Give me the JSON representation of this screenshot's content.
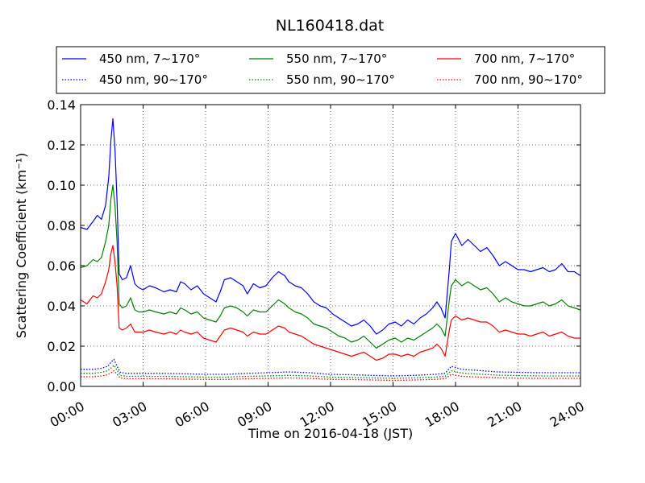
{
  "chart_data": {
    "type": "line",
    "title": "NL160418.dat",
    "xlabel": "Time on 2016-04-18 (JST)",
    "ylabel": "Scattering Coefficient (km⁻¹)",
    "xlim": [
      0,
      24
    ],
    "ylim": [
      0,
      0.14
    ],
    "xticks": [
      0,
      3,
      6,
      9,
      12,
      15,
      18,
      21,
      24
    ],
    "xtick_labels": [
      "00:00",
      "03:00",
      "06:00",
      "09:00",
      "12:00",
      "15:00",
      "18:00",
      "21:00",
      "24:00"
    ],
    "yticks": [
      0,
      0.02,
      0.04,
      0.06,
      0.08,
      0.1,
      0.12,
      0.14
    ],
    "ytick_labels": [
      "0.00",
      "0.02",
      "0.04",
      "0.06",
      "0.08",
      "0.10",
      "0.12",
      "0.14"
    ],
    "grid": true,
    "legend_position": "top-outside",
    "legend_columns": 3,
    "series": [
      {
        "name": "450 nm, 7∼170°",
        "color": "#0000ff",
        "style": "solid",
        "x": [
          0,
          0.3,
          0.6,
          0.8,
          1.0,
          1.2,
          1.35,
          1.45,
          1.55,
          1.65,
          1.75,
          1.85,
          2.0,
          2.2,
          2.4,
          2.6,
          2.8,
          3.0,
          3.3,
          3.6,
          4.0,
          4.3,
          4.6,
          4.8,
          5.0,
          5.3,
          5.6,
          5.9,
          6.2,
          6.5,
          6.7,
          6.9,
          7.2,
          7.5,
          7.8,
          8.0,
          8.3,
          8.6,
          8.9,
          9.2,
          9.5,
          9.8,
          10.0,
          10.3,
          10.6,
          10.9,
          11.2,
          11.5,
          11.8,
          12.1,
          12.4,
          12.7,
          13.0,
          13.3,
          13.6,
          13.9,
          14.2,
          14.5,
          14.8,
          15.1,
          15.4,
          15.7,
          16.0,
          16.3,
          16.6,
          16.9,
          17.1,
          17.3,
          17.5,
          17.7,
          17.8,
          18.0,
          18.3,
          18.6,
          18.9,
          19.2,
          19.5,
          19.8,
          20.1,
          20.4,
          20.7,
          21.0,
          21.3,
          21.6,
          21.9,
          22.2,
          22.5,
          22.8,
          23.1,
          23.4,
          23.7,
          24.0
        ],
        "values": [
          0.079,
          0.078,
          0.082,
          0.085,
          0.083,
          0.09,
          0.104,
          0.122,
          0.133,
          0.118,
          0.092,
          0.056,
          0.053,
          0.054,
          0.06,
          0.051,
          0.049,
          0.048,
          0.05,
          0.049,
          0.047,
          0.048,
          0.047,
          0.052,
          0.051,
          0.048,
          0.05,
          0.046,
          0.044,
          0.042,
          0.047,
          0.053,
          0.054,
          0.052,
          0.05,
          0.046,
          0.051,
          0.049,
          0.05,
          0.054,
          0.057,
          0.055,
          0.052,
          0.05,
          0.049,
          0.046,
          0.042,
          0.04,
          0.039,
          0.036,
          0.034,
          0.032,
          0.03,
          0.031,
          0.033,
          0.03,
          0.026,
          0.028,
          0.031,
          0.032,
          0.03,
          0.033,
          0.031,
          0.034,
          0.036,
          0.039,
          0.042,
          0.039,
          0.034,
          0.058,
          0.072,
          0.076,
          0.07,
          0.073,
          0.07,
          0.067,
          0.069,
          0.065,
          0.06,
          0.062,
          0.06,
          0.058,
          0.058,
          0.057,
          0.058,
          0.059,
          0.057,
          0.058,
          0.061,
          0.057,
          0.057,
          0.055
        ]
      },
      {
        "name": "550 nm, 7∼170°",
        "color": "#008000",
        "style": "solid",
        "x": [
          0,
          0.3,
          0.6,
          0.8,
          1.0,
          1.2,
          1.35,
          1.45,
          1.55,
          1.65,
          1.75,
          1.85,
          2.0,
          2.2,
          2.4,
          2.6,
          2.8,
          3.0,
          3.3,
          3.6,
          4.0,
          4.3,
          4.6,
          4.8,
          5.0,
          5.3,
          5.6,
          5.9,
          6.2,
          6.5,
          6.7,
          6.9,
          7.2,
          7.5,
          7.8,
          8.0,
          8.3,
          8.6,
          8.9,
          9.2,
          9.5,
          9.8,
          10.0,
          10.3,
          10.6,
          10.9,
          11.2,
          11.5,
          11.8,
          12.1,
          12.4,
          12.7,
          13.0,
          13.3,
          13.6,
          13.9,
          14.2,
          14.5,
          14.8,
          15.1,
          15.4,
          15.7,
          16.0,
          16.3,
          16.6,
          16.9,
          17.1,
          17.3,
          17.5,
          17.7,
          17.8,
          18.0,
          18.3,
          18.6,
          18.9,
          19.2,
          19.5,
          19.8,
          20.1,
          20.4,
          20.7,
          21.0,
          21.3,
          21.6,
          21.9,
          22.2,
          22.5,
          22.8,
          23.1,
          23.4,
          23.7,
          24.0
        ],
        "values": [
          0.059,
          0.06,
          0.063,
          0.062,
          0.064,
          0.072,
          0.08,
          0.093,
          0.1,
          0.09,
          0.072,
          0.041,
          0.039,
          0.04,
          0.044,
          0.038,
          0.037,
          0.037,
          0.038,
          0.037,
          0.036,
          0.037,
          0.036,
          0.039,
          0.038,
          0.036,
          0.037,
          0.034,
          0.033,
          0.032,
          0.035,
          0.039,
          0.04,
          0.039,
          0.037,
          0.035,
          0.038,
          0.037,
          0.037,
          0.04,
          0.043,
          0.041,
          0.039,
          0.037,
          0.036,
          0.034,
          0.031,
          0.03,
          0.029,
          0.027,
          0.025,
          0.024,
          0.022,
          0.023,
          0.025,
          0.022,
          0.019,
          0.021,
          0.023,
          0.024,
          0.022,
          0.024,
          0.023,
          0.025,
          0.027,
          0.029,
          0.031,
          0.029,
          0.025,
          0.043,
          0.05,
          0.053,
          0.05,
          0.052,
          0.05,
          0.048,
          0.049,
          0.046,
          0.042,
          0.044,
          0.042,
          0.041,
          0.04,
          0.04,
          0.041,
          0.042,
          0.04,
          0.041,
          0.043,
          0.04,
          0.039,
          0.038
        ]
      },
      {
        "name": "700 nm, 7∼170°",
        "color": "#ff0000",
        "style": "solid",
        "x": [
          0,
          0.3,
          0.6,
          0.8,
          1.0,
          1.2,
          1.35,
          1.45,
          1.55,
          1.65,
          1.75,
          1.85,
          2.0,
          2.2,
          2.4,
          2.6,
          2.8,
          3.0,
          3.3,
          3.6,
          4.0,
          4.3,
          4.6,
          4.8,
          5.0,
          5.3,
          5.6,
          5.9,
          6.2,
          6.5,
          6.7,
          6.9,
          7.2,
          7.5,
          7.8,
          8.0,
          8.3,
          8.6,
          8.9,
          9.2,
          9.5,
          9.8,
          10.0,
          10.3,
          10.6,
          10.9,
          11.2,
          11.5,
          11.8,
          12.1,
          12.4,
          12.7,
          13.0,
          13.3,
          13.6,
          13.9,
          14.2,
          14.5,
          14.8,
          15.1,
          15.4,
          15.7,
          16.0,
          16.3,
          16.6,
          16.9,
          17.1,
          17.3,
          17.5,
          17.7,
          17.8,
          18.0,
          18.3,
          18.6,
          18.9,
          19.2,
          19.5,
          19.8,
          20.1,
          20.4,
          20.7,
          21.0,
          21.3,
          21.6,
          21.9,
          22.2,
          22.5,
          22.8,
          23.1,
          23.4,
          23.7,
          24.0
        ],
        "values": [
          0.043,
          0.041,
          0.045,
          0.044,
          0.046,
          0.052,
          0.058,
          0.066,
          0.07,
          0.062,
          0.05,
          0.029,
          0.028,
          0.029,
          0.031,
          0.027,
          0.027,
          0.027,
          0.028,
          0.027,
          0.026,
          0.027,
          0.026,
          0.028,
          0.027,
          0.026,
          0.027,
          0.024,
          0.023,
          0.022,
          0.025,
          0.028,
          0.029,
          0.028,
          0.027,
          0.025,
          0.027,
          0.026,
          0.026,
          0.028,
          0.03,
          0.029,
          0.027,
          0.026,
          0.025,
          0.023,
          0.021,
          0.02,
          0.019,
          0.018,
          0.017,
          0.016,
          0.015,
          0.016,
          0.017,
          0.015,
          0.013,
          0.014,
          0.016,
          0.016,
          0.015,
          0.016,
          0.015,
          0.017,
          0.018,
          0.019,
          0.021,
          0.019,
          0.015,
          0.028,
          0.033,
          0.035,
          0.033,
          0.034,
          0.033,
          0.032,
          0.032,
          0.03,
          0.027,
          0.028,
          0.027,
          0.026,
          0.026,
          0.025,
          0.026,
          0.027,
          0.025,
          0.026,
          0.027,
          0.025,
          0.024,
          0.024
        ]
      },
      {
        "name": "450 nm, 90∼170°",
        "color": "#0000ff",
        "style": "dotted",
        "x": [
          0,
          0.6,
          1.0,
          1.3,
          1.5,
          1.6,
          1.75,
          1.9,
          2.2,
          3.0,
          4.0,
          5.0,
          6.0,
          7.0,
          8.0,
          9.0,
          10.0,
          11.0,
          12.0,
          13.0,
          14.0,
          15.0,
          16.0,
          17.0,
          17.5,
          17.8,
          18.3,
          19.0,
          20.0,
          21.0,
          22.0,
          23.0,
          24.0
        ],
        "values": [
          0.0085,
          0.0085,
          0.009,
          0.01,
          0.0125,
          0.0135,
          0.01,
          0.007,
          0.0065,
          0.0065,
          0.0065,
          0.0063,
          0.006,
          0.006,
          0.0065,
          0.0068,
          0.0072,
          0.0068,
          0.006,
          0.0058,
          0.0055,
          0.0052,
          0.0055,
          0.006,
          0.0065,
          0.01,
          0.0085,
          0.008,
          0.0072,
          0.007,
          0.0068,
          0.0068,
          0.0068
        ]
      },
      {
        "name": "550 nm, 90∼170°",
        "color": "#008000",
        "style": "dotted",
        "x": [
          0,
          0.6,
          1.0,
          1.3,
          1.5,
          1.6,
          1.75,
          1.9,
          2.2,
          3.0,
          4.0,
          5.0,
          6.0,
          7.0,
          8.0,
          9.0,
          10.0,
          11.0,
          12.0,
          13.0,
          14.0,
          15.0,
          16.0,
          17.0,
          17.5,
          17.8,
          18.3,
          19.0,
          20.0,
          21.0,
          22.0,
          23.0,
          24.0
        ],
        "values": [
          0.0065,
          0.0065,
          0.007,
          0.0078,
          0.0095,
          0.0105,
          0.008,
          0.0055,
          0.005,
          0.005,
          0.005,
          0.0048,
          0.0046,
          0.0046,
          0.005,
          0.0052,
          0.0055,
          0.0052,
          0.0046,
          0.0044,
          0.0042,
          0.004,
          0.0042,
          0.0046,
          0.005,
          0.0078,
          0.0066,
          0.0062,
          0.0056,
          0.0054,
          0.0052,
          0.0052,
          0.0052
        ]
      },
      {
        "name": "700 nm, 90∼170°",
        "color": "#ff0000",
        "style": "dotted",
        "x": [
          0,
          0.6,
          1.0,
          1.3,
          1.5,
          1.6,
          1.75,
          1.9,
          2.2,
          3.0,
          4.0,
          5.0,
          6.0,
          7.0,
          8.0,
          9.0,
          10.0,
          11.0,
          12.0,
          13.0,
          14.0,
          15.0,
          16.0,
          17.0,
          17.5,
          17.8,
          18.3,
          19.0,
          20.0,
          21.0,
          22.0,
          23.0,
          24.0
        ],
        "values": [
          0.0048,
          0.0048,
          0.0052,
          0.0058,
          0.007,
          0.0078,
          0.006,
          0.0042,
          0.0038,
          0.0038,
          0.0038,
          0.0036,
          0.0035,
          0.0035,
          0.0038,
          0.004,
          0.0042,
          0.004,
          0.0035,
          0.0034,
          0.0032,
          0.003,
          0.0032,
          0.0035,
          0.0038,
          0.006,
          0.005,
          0.0047,
          0.0043,
          0.0041,
          0.004,
          0.004,
          0.004
        ]
      }
    ],
    "legend_order": [
      0,
      1,
      2,
      3,
      4,
      5
    ]
  }
}
